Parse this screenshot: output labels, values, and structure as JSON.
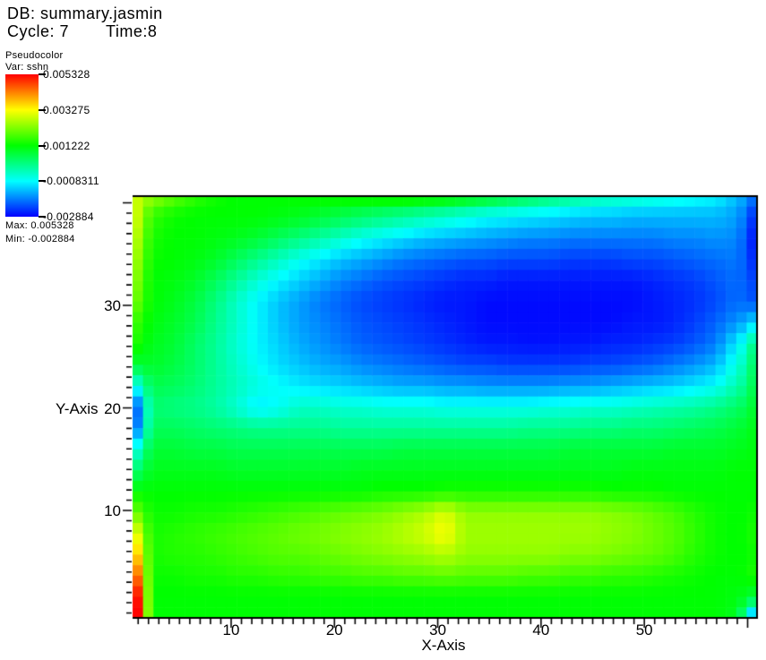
{
  "header": {
    "db_label": "DB: summary.jasmin",
    "cycle_label": "Cycle: 7",
    "time_label": "Time:8"
  },
  "legend": {
    "title": "Pseudocolor",
    "var_label": "Var: sshn",
    "tick_labels": [
      "0.005328",
      "0.003275",
      "0.001222",
      "-0.0008311",
      "-0.002884"
    ],
    "max_label": "Max: 0.005328",
    "min_label": "Min: -0.002884"
  },
  "chart_data": {
    "type": "heatmap",
    "variable": "sshn",
    "xlabel": "X-Axis",
    "ylabel": "Y-Axis",
    "x_range": [
      0,
      60
    ],
    "y_range": [
      0,
      40
    ],
    "x_ticks": [
      10,
      20,
      30,
      40,
      50
    ],
    "y_ticks": [
      30,
      20,
      10
    ],
    "x_minor_step": 1,
    "y_minor_step": 1,
    "vmin": -0.002884,
    "vmax": 0.005328,
    "value_scale": 0.001,
    "colormap": [
      {
        "t": 0.0,
        "color": "#0000ff"
      },
      {
        "t": 0.25,
        "color": "#00ffff"
      },
      {
        "t": 0.5,
        "color": "#00ff00"
      },
      {
        "t": 0.75,
        "color": "#ffff00"
      },
      {
        "t": 1.0,
        "color": "#ff0000"
      }
    ],
    "grid": {
      "cols": 31,
      "rows": 21,
      "x0": 0,
      "x_step": 2,
      "y_top": 40,
      "y_step": 2,
      "note": "values are sshn in thousandths (multiply by value_scale), rows listed top (y=40) to bottom (y=0)",
      "values": [
        [
          2.8,
          2.2,
          1.8,
          1.5,
          1.3,
          1.2,
          1.2,
          1.2,
          1.2,
          1.2,
          1.2,
          1.2,
          1.2,
          1.2,
          1.1,
          1.0,
          0.8,
          0.6,
          0.4,
          0.2,
          0.0,
          -0.2,
          -0.4,
          -0.5,
          -0.6,
          -0.7,
          -0.8,
          -0.9,
          -1.0,
          -1.4,
          -2.0
        ],
        [
          2.8,
          1.6,
          1.3,
          1.2,
          1.2,
          1.2,
          1.2,
          1.1,
          1.0,
          0.8,
          0.6,
          0.4,
          0.2,
          0.0,
          -0.2,
          -0.4,
          -0.6,
          -0.8,
          -0.9,
          -1.0,
          -1.1,
          -1.2,
          -1.3,
          -1.3,
          -1.4,
          -1.4,
          -1.4,
          -1.4,
          -1.4,
          -1.6,
          -2.4
        ],
        [
          2.6,
          1.4,
          1.2,
          1.2,
          1.1,
          1.0,
          0.8,
          0.5,
          0.2,
          -0.1,
          -0.4,
          -0.7,
          -0.9,
          -1.1,
          -1.3,
          -1.4,
          -1.5,
          -1.6,
          -1.7,
          -1.8,
          -1.8,
          -1.9,
          -1.9,
          -1.9,
          -1.9,
          -1.9,
          -1.8,
          -1.8,
          -1.7,
          -1.8,
          -2.6
        ],
        [
          2.4,
          1.3,
          1.2,
          1.1,
          0.9,
          0.5,
          0.1,
          -0.3,
          -0.7,
          -1.0,
          -1.3,
          -1.5,
          -1.7,
          -1.9,
          -2.0,
          -2.1,
          -2.2,
          -2.2,
          -2.3,
          -2.3,
          -2.3,
          -2.4,
          -2.4,
          -2.4,
          -2.3,
          -2.3,
          -2.2,
          -2.1,
          -2.0,
          -1.9,
          -2.5
        ],
        [
          2.2,
          1.2,
          1.1,
          0.9,
          0.5,
          0.0,
          -0.5,
          -0.9,
          -1.2,
          -1.5,
          -1.8,
          -2.0,
          -2.2,
          -2.3,
          -2.4,
          -2.5,
          -2.6,
          -2.6,
          -2.7,
          -2.7,
          -2.7,
          -2.7,
          -2.7,
          -2.7,
          -2.7,
          -2.6,
          -2.5,
          -2.4,
          -2.2,
          -2.0,
          -2.3
        ],
        [
          2.0,
          1.2,
          1.0,
          0.7,
          0.2,
          -0.4,
          -0.9,
          -1.3,
          -1.6,
          -1.9,
          -2.1,
          -2.3,
          -2.4,
          -2.5,
          -2.6,
          -2.7,
          -2.7,
          -2.8,
          -2.8,
          -2.8,
          -2.8,
          -2.8,
          -2.8,
          -2.8,
          -2.8,
          -2.7,
          -2.6,
          -2.5,
          -2.3,
          -2.0,
          -2.2
        ],
        [
          1.6,
          1.1,
          0.9,
          0.6,
          0.1,
          -0.4,
          -0.9,
          -1.3,
          -1.6,
          -1.8,
          -2.0,
          -2.2,
          -2.3,
          -2.4,
          -2.5,
          -2.6,
          -2.7,
          -2.8,
          -2.8,
          -2.8,
          -2.8,
          -2.8,
          -2.8,
          -2.8,
          -2.7,
          -2.7,
          -2.6,
          -2.4,
          -2.1,
          -1.7,
          -1.2
        ],
        [
          1.4,
          1.0,
          0.8,
          0.4,
          0.0,
          -0.5,
          -0.9,
          -1.2,
          -1.5,
          -1.7,
          -1.9,
          -2.1,
          -2.2,
          -2.3,
          -2.4,
          -2.5,
          -2.6,
          -2.7,
          -2.7,
          -2.75,
          -2.75,
          -2.7,
          -2.7,
          -2.6,
          -2.6,
          -2.5,
          -2.4,
          -2.2,
          -1.9,
          -1.0,
          0.0
        ],
        [
          0.8,
          0.9,
          0.7,
          0.4,
          0.0,
          -0.4,
          -0.8,
          -1.1,
          -1.3,
          -1.5,
          -1.6,
          -1.8,
          -1.9,
          -2.0,
          -2.1,
          -2.2,
          -2.3,
          -2.3,
          -2.4,
          -2.4,
          -2.4,
          -2.4,
          -2.3,
          -2.3,
          -2.2,
          -2.1,
          -1.9,
          -1.7,
          -1.4,
          -0.6,
          0.3
        ],
        [
          -0.6,
          0.6,
          0.5,
          0.3,
          0.0,
          -0.3,
          -0.6,
          -0.8,
          -1.0,
          -1.1,
          -1.2,
          -1.3,
          -1.4,
          -1.5,
          -1.5,
          -1.6,
          -1.6,
          -1.7,
          -1.7,
          -1.7,
          -1.7,
          -1.6,
          -1.6,
          -1.5,
          -1.4,
          -1.3,
          -1.2,
          -1.0,
          -0.8,
          -0.2,
          0.5
        ],
        [
          -2.0,
          0.3,
          0.2,
          0.1,
          -0.1,
          -0.5,
          -1.0,
          -0.8,
          -0.4,
          -0.4,
          -0.5,
          -0.5,
          -0.6,
          -0.6,
          -0.6,
          -0.7,
          -0.7,
          -0.7,
          -0.7,
          -0.7,
          -0.6,
          -0.6,
          -0.5,
          -0.5,
          -0.4,
          -0.3,
          -0.2,
          -0.1,
          0.1,
          0.4,
          0.8
        ],
        [
          -1.8,
          0.5,
          0.5,
          0.4,
          0.3,
          0.2,
          0.1,
          0.1,
          0.1,
          0.1,
          0.0,
          0.0,
          0.0,
          0.0,
          0.0,
          0.0,
          0.0,
          0.0,
          0.0,
          0.1,
          0.1,
          0.1,
          0.2,
          0.2,
          0.3,
          0.3,
          0.4,
          0.5,
          0.6,
          0.8,
          1.0
        ],
        [
          -0.5,
          0.8,
          0.8,
          0.7,
          0.7,
          0.6,
          0.6,
          0.6,
          0.6,
          0.6,
          0.6,
          0.6,
          0.6,
          0.7,
          0.7,
          0.7,
          0.7,
          0.7,
          0.7,
          0.7,
          0.7,
          0.8,
          0.8,
          0.8,
          0.8,
          0.8,
          0.9,
          0.9,
          0.9,
          1.0,
          1.1
        ],
        [
          0.4,
          1.0,
          1.0,
          1.0,
          1.0,
          0.9,
          0.9,
          0.9,
          0.9,
          0.9,
          0.9,
          1.0,
          1.0,
          1.0,
          1.0,
          1.0,
          1.0,
          1.0,
          1.0,
          1.0,
          1.0,
          1.0,
          1.0,
          1.0,
          1.1,
          1.1,
          1.1,
          1.1,
          1.1,
          1.2,
          1.2
        ],
        [
          1.2,
          1.2,
          1.2,
          1.2,
          1.2,
          1.2,
          1.2,
          1.2,
          1.2,
          1.2,
          1.2,
          1.2,
          1.3,
          1.3,
          1.3,
          1.4,
          1.4,
          1.4,
          1.4,
          1.4,
          1.4,
          1.4,
          1.4,
          1.3,
          1.3,
          1.3,
          1.2,
          1.2,
          1.2,
          1.2,
          1.2
        ],
        [
          2.0,
          1.3,
          1.3,
          1.4,
          1.4,
          1.5,
          1.6,
          1.7,
          1.8,
          1.9,
          2.0,
          2.1,
          2.2,
          2.4,
          2.6,
          3.0,
          2.4,
          2.4,
          2.4,
          2.4,
          2.4,
          2.4,
          2.4,
          2.3,
          2.2,
          2.0,
          1.8,
          1.5,
          1.3,
          1.2,
          1.3
        ],
        [
          3.0,
          1.4,
          1.5,
          1.6,
          1.7,
          1.8,
          1.9,
          2.0,
          2.1,
          2.2,
          2.3,
          2.4,
          2.5,
          2.7,
          2.9,
          3.3,
          2.5,
          2.5,
          2.5,
          2.5,
          2.5,
          2.5,
          2.5,
          2.4,
          2.3,
          2.1,
          1.9,
          1.6,
          1.3,
          1.2,
          1.4
        ],
        [
          3.6,
          1.4,
          1.5,
          1.5,
          1.6,
          1.7,
          1.8,
          1.9,
          1.9,
          2.0,
          2.1,
          2.2,
          2.3,
          2.4,
          2.5,
          2.7,
          2.4,
          2.4,
          2.4,
          2.4,
          2.4,
          2.3,
          2.3,
          2.2,
          2.1,
          2.0,
          1.8,
          1.5,
          1.3,
          1.2,
          1.3
        ],
        [
          4.4,
          1.3,
          1.3,
          1.4,
          1.4,
          1.5,
          1.5,
          1.6,
          1.6,
          1.7,
          1.7,
          1.8,
          1.8,
          1.9,
          1.9,
          2.0,
          1.9,
          1.9,
          1.9,
          1.8,
          1.8,
          1.7,
          1.7,
          1.6,
          1.6,
          1.5,
          1.4,
          1.3,
          1.2,
          1.2,
          1.4
        ],
        [
          5.2,
          1.2,
          1.2,
          1.2,
          1.2,
          1.2,
          1.2,
          1.2,
          1.2,
          1.2,
          1.2,
          1.2,
          1.2,
          1.2,
          1.2,
          1.2,
          1.2,
          1.2,
          1.2,
          1.2,
          1.2,
          1.2,
          1.2,
          1.2,
          1.2,
          1.2,
          1.2,
          1.2,
          1.2,
          1.1,
          0.8
        ],
        [
          5.3,
          1.2,
          1.2,
          1.2,
          1.2,
          1.2,
          1.2,
          1.2,
          1.2,
          1.2,
          1.2,
          1.2,
          1.2,
          1.2,
          1.2,
          1.2,
          1.2,
          1.2,
          1.2,
          1.2,
          1.2,
          1.2,
          1.2,
          1.2,
          1.2,
          1.2,
          1.2,
          1.2,
          1.2,
          1.0,
          -1.0
        ]
      ]
    }
  }
}
